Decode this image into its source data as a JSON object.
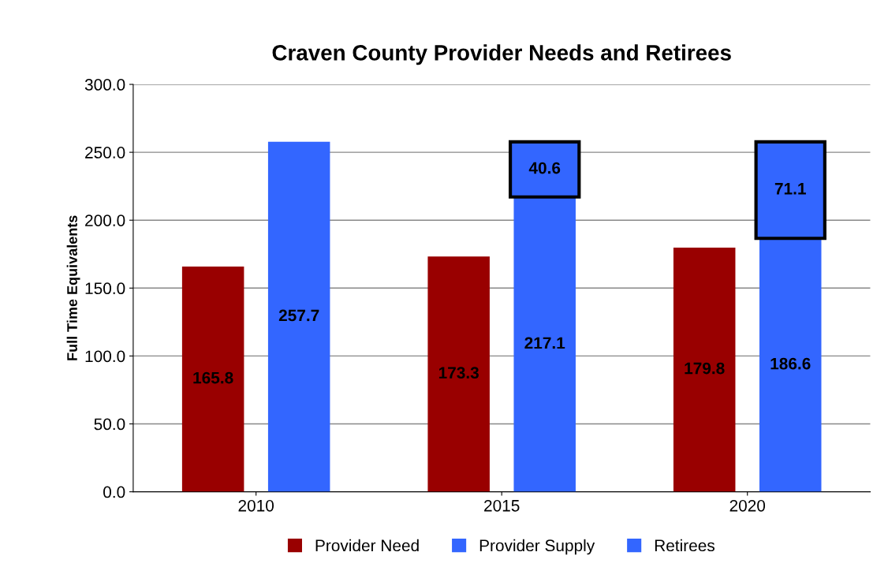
{
  "chart_data": {
    "type": "bar",
    "title": "Craven County Provider Needs and Retirees",
    "ylabel": "Full Time Equivalents",
    "categories": [
      "2010",
      "2015",
      "2020"
    ],
    "series": [
      {
        "name": "Provider Need",
        "color": "#990000",
        "values": [
          165.8,
          173.3,
          179.8
        ]
      },
      {
        "name": "Provider Supply",
        "color": "#3366ff",
        "values": [
          257.7,
          217.1,
          186.6
        ]
      },
      {
        "name": "Retirees",
        "color": "#3366ff",
        "values": [
          null,
          40.6,
          71.1
        ],
        "base": [
          null,
          217.1,
          186.6
        ]
      }
    ],
    "ylim": [
      0,
      300
    ],
    "yticks": [
      {
        "value": 0,
        "label": "0.0"
      },
      {
        "value": 50,
        "label": "50.0"
      },
      {
        "value": 100,
        "label": "100.0"
      },
      {
        "value": 150,
        "label": "150.0"
      },
      {
        "value": 200,
        "label": "200.0"
      },
      {
        "value": 250,
        "label": "250.0"
      },
      {
        "value": 300,
        "label": "300.0"
      }
    ],
    "grid": "y",
    "legend": "bottom",
    "data_labels": true
  }
}
